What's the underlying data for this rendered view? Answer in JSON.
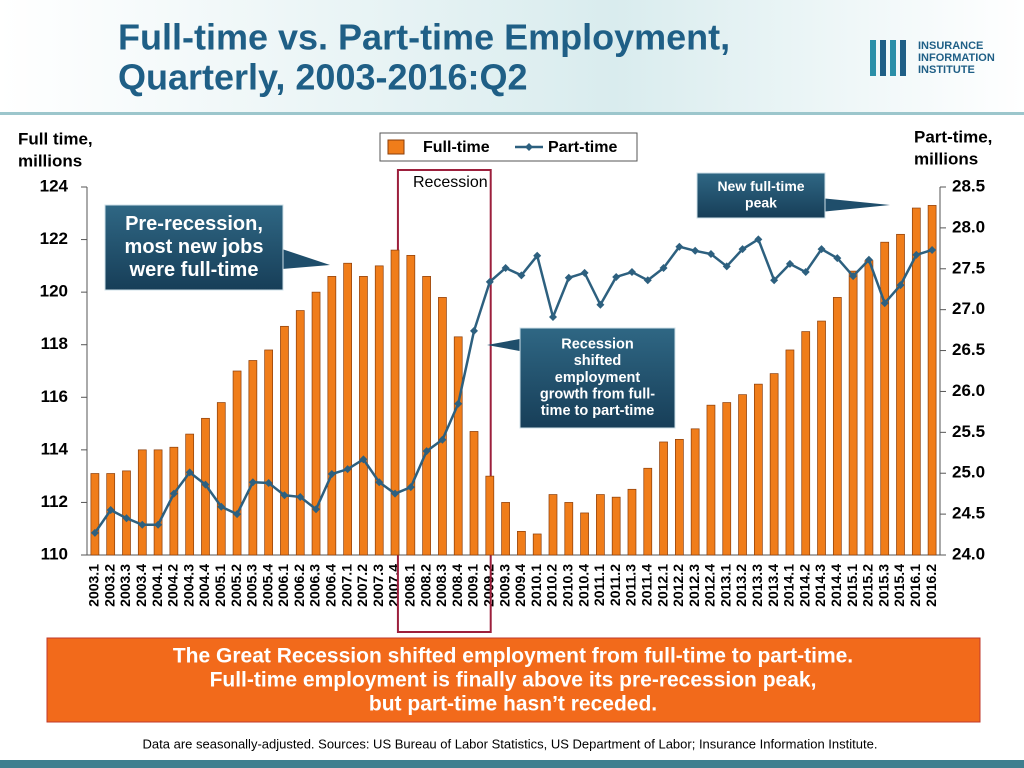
{
  "header": {
    "title": [
      "Full-time vs. Part-time Employment,",
      "Quarterly, 2003-2016:Q2"
    ],
    "logo": [
      "INSURANCE",
      "INFORMATION",
      "INSTITUTE"
    ]
  },
  "chart_data": {
    "type": "combo",
    "ylabel": [
      "Full time,",
      "millions"
    ],
    "y2label": [
      "Part-time,",
      "millions"
    ],
    "categories": [
      "2003.1",
      "2003.2",
      "2003.3",
      "2003.4",
      "2004.1",
      "2004.2",
      "2004.3",
      "2004.4",
      "2005.1",
      "2005.2",
      "2005.3",
      "2005.4",
      "2006.1",
      "2006.2",
      "2006.3",
      "2006.4",
      "2007.1",
      "2007.2",
      "2007.3",
      "2007.4",
      "2008.1",
      "2008.2",
      "2008.3",
      "2008.4",
      "2009.1",
      "2009.2",
      "2009.3",
      "2009.4",
      "2010.1",
      "2010.2",
      "2010.3",
      "2010.4",
      "2011.1",
      "2011.2",
      "2011.3",
      "2011.4",
      "2012.1",
      "2012.2",
      "2012.3",
      "2012.4",
      "2013.1",
      "2013.2",
      "2013.3",
      "2013.4",
      "2014.1",
      "2014.2",
      "2014.3",
      "2014.4",
      "2015.1",
      "2015.2",
      "2015.3",
      "2015.4",
      "2016.1",
      "2016.2"
    ],
    "series": [
      {
        "name": "Full-time",
        "type": "bar",
        "color": "#f07d1a",
        "values": [
          113.1,
          113.1,
          113.2,
          114.0,
          114.0,
          114.1,
          114.6,
          115.2,
          115.8,
          117.0,
          117.4,
          117.8,
          118.7,
          119.3,
          120.0,
          120.6,
          121.1,
          120.6,
          121.0,
          121.6,
          121.4,
          120.6,
          119.8,
          118.3,
          114.7,
          113.0,
          112.0,
          110.9,
          110.8,
          112.3,
          112.0,
          111.6,
          112.3,
          112.2,
          112.5,
          113.3,
          114.3,
          114.4,
          114.8,
          115.7,
          115.8,
          116.1,
          116.5,
          116.9,
          117.8,
          118.5,
          118.9,
          119.8,
          120.8,
          121.2,
          121.9,
          122.2,
          123.2,
          123.3
        ]
      },
      {
        "name": "Part-time",
        "type": "line",
        "axis": "y2",
        "color": "#2d607f",
        "values": [
          24.27,
          24.55,
          24.45,
          24.37,
          24.37,
          24.75,
          25.01,
          24.86,
          24.59,
          24.5,
          24.89,
          24.88,
          24.73,
          24.71,
          24.56,
          24.99,
          25.05,
          25.17,
          24.89,
          24.75,
          24.83,
          25.27,
          25.41,
          25.85,
          26.74,
          27.34,
          27.51,
          27.42,
          27.66,
          26.91,
          27.39,
          27.45,
          27.06,
          27.4,
          27.46,
          27.36,
          27.51,
          27.77,
          27.72,
          27.68,
          27.53,
          27.74,
          27.86,
          27.36,
          27.56,
          27.46,
          27.74,
          27.63,
          27.41,
          27.61,
          27.08,
          27.3,
          27.67,
          27.73
        ]
      }
    ],
    "ylim": [
      110,
      124
    ],
    "yticks": [
      110,
      112,
      114,
      116,
      118,
      120,
      122,
      124
    ],
    "y2lim": [
      24,
      28.5
    ],
    "y2ticks": [
      {
        "value": 24,
        "label": "24.0"
      },
      24.5,
      {
        "value": 25,
        "label": "25.0"
      },
      25.5,
      {
        "value": 26,
        "label": "26.0"
      },
      26.5,
      {
        "value": 27,
        "label": "27.0"
      },
      27.5,
      {
        "value": 28,
        "label": "28.0"
      },
      28.5
    ],
    "legend": "top",
    "annotations": [
      {
        "text": [
          "Recession"
        ]
      },
      {
        "text": [
          "Pre-recession,",
          "most new jobs",
          "were full-time"
        ]
      },
      {
        "text": [
          "New full-time",
          "peak"
        ]
      },
      {
        "text": [
          "Recession",
          "shifted",
          "employment",
          "growth from full-",
          "time to part-time"
        ]
      }
    ]
  },
  "banner": [
    "The Great Recession shifted employment from full-time to part-time.",
    "Full-time employment is finally above its pre-recession peak,",
    "but part-time hasn’t receded."
  ],
  "footnote": "Data are seasonally-adjusted. Sources: US Bureau of Labor Statistics, US Department of Labor; Insurance Information Institute."
}
